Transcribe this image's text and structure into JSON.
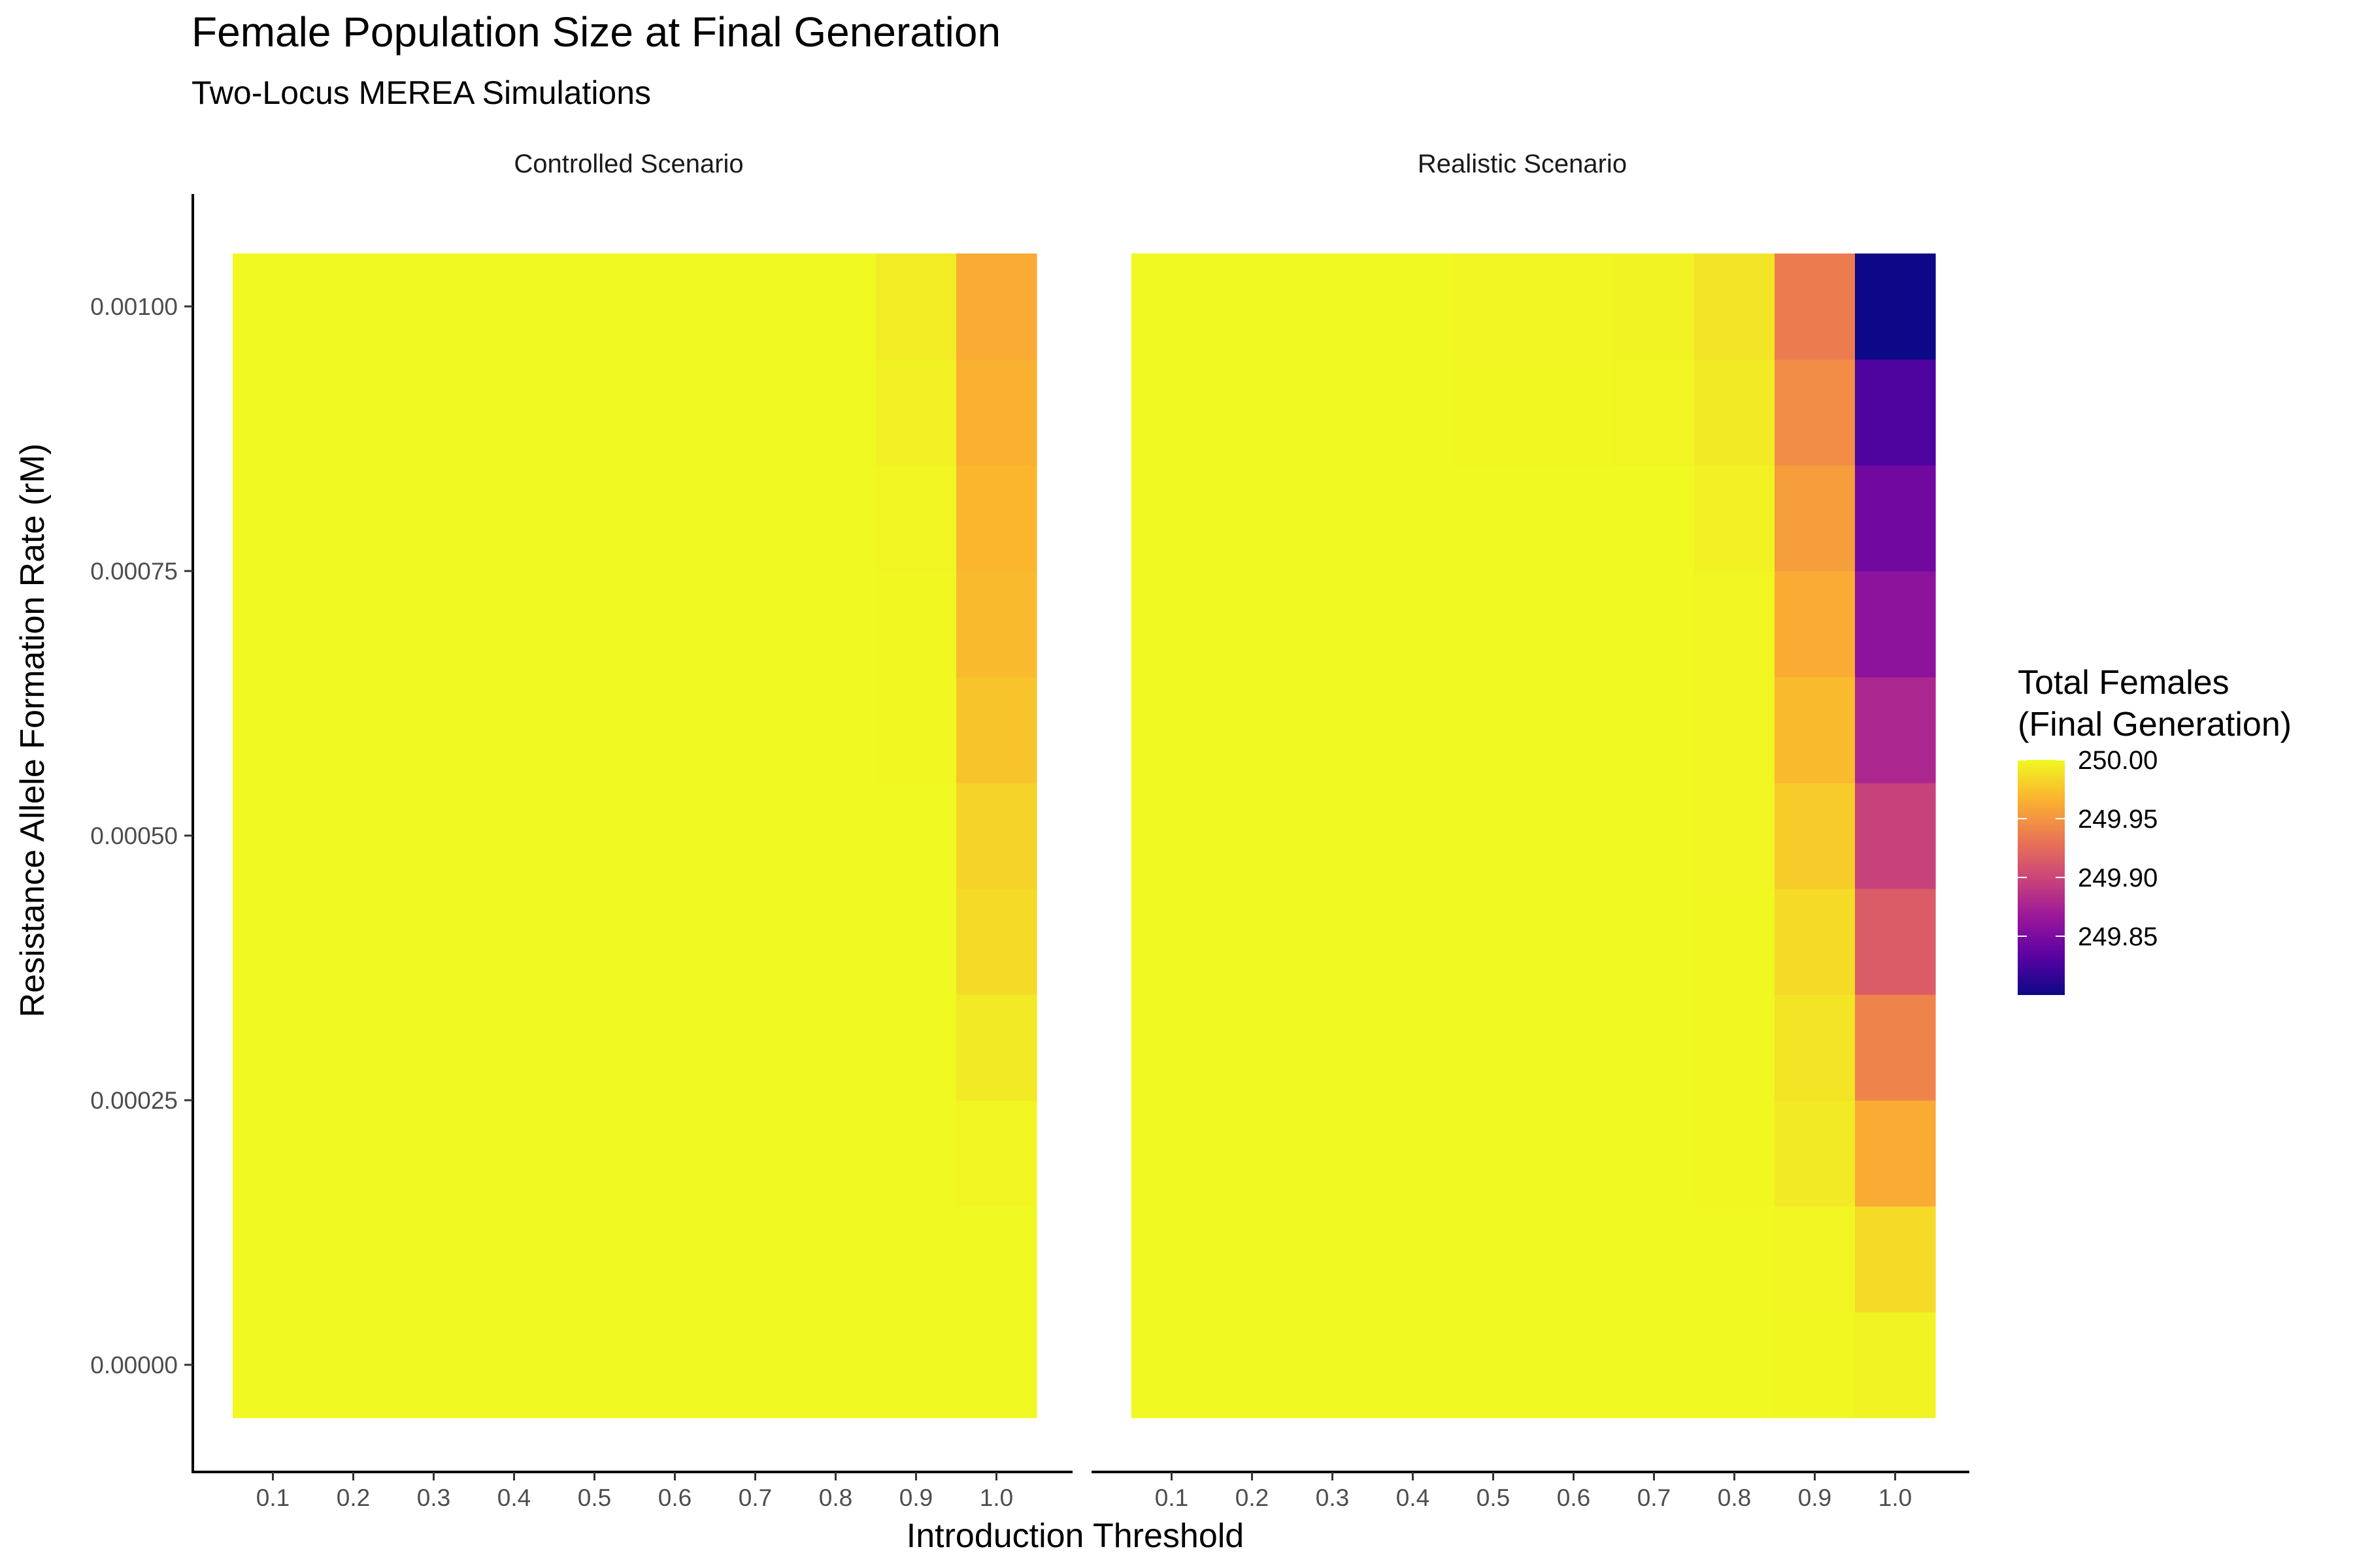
{
  "chart_data": {
    "type": "heatmap",
    "title": "Female Population Size at Final Generation",
    "subtitle": "Two-Locus MEREA Simulations",
    "xlabel": "Introduction Threshold",
    "ylabel": "Resistance Allele Formation Rate (rM)",
    "x": [
      0.1,
      0.2,
      0.3,
      0.4,
      0.5,
      0.6,
      0.7,
      0.8,
      0.9,
      1.0
    ],
    "x_tick_labels": [
      "0.1",
      "0.2",
      "0.3",
      "0.4",
      "0.5",
      "0.6",
      "0.7",
      "0.8",
      "0.9",
      "1.0"
    ],
    "y": [
      0.0,
      0.0001,
      0.0002,
      0.0003,
      0.0004,
      0.0005,
      0.0006,
      0.0007,
      0.0008,
      0.0009,
      0.001
    ],
    "y_ticks": [
      0.0,
      0.00025,
      0.0005,
      0.00075,
      0.001
    ],
    "y_tick_labels": [
      "0.00000",
      "0.00025",
      "0.00050",
      "0.00075",
      "0.00100"
    ],
    "legend": {
      "title_line1": "Total Females",
      "title_line2": "(Final Generation)",
      "placement": "right",
      "limits": [
        249.8,
        250.0
      ],
      "ticks": [
        250.0,
        249.95,
        249.9,
        249.85
      ],
      "tick_labels": [
        "250.00",
        "249.95",
        "249.90",
        "249.85"
      ]
    },
    "colorscale": [
      "#0d0887",
      "#5b02a3",
      "#9a179b",
      "#cb4678",
      "#eb7852",
      "#fbb32f",
      "#f0f921"
    ],
    "panels": [
      {
        "label": "Controlled Scenario",
        "z": [
          [
            250.0,
            250.0,
            250.0,
            250.0,
            250.0,
            250.0,
            250.0,
            250.0,
            250.0,
            250.0
          ],
          [
            250.0,
            250.0,
            250.0,
            250.0,
            250.0,
            250.0,
            250.0,
            250.0,
            250.0,
            250.0
          ],
          [
            250.0,
            250.0,
            250.0,
            250.0,
            250.0,
            250.0,
            250.0,
            250.0,
            250.0,
            249.998
          ],
          [
            250.0,
            250.0,
            250.0,
            250.0,
            250.0,
            250.0,
            250.0,
            250.0,
            250.0,
            249.993
          ],
          [
            250.0,
            250.0,
            250.0,
            250.0,
            250.0,
            250.0,
            250.0,
            250.0,
            250.0,
            249.985
          ],
          [
            250.0,
            250.0,
            250.0,
            250.0,
            250.0,
            250.0,
            250.0,
            250.0,
            250.0,
            249.982
          ],
          [
            250.0,
            250.0,
            250.0,
            250.0,
            250.0,
            250.0,
            250.0,
            250.0,
            249.999,
            249.975
          ],
          [
            250.0,
            250.0,
            250.0,
            250.0,
            250.0,
            250.0,
            250.0,
            250.0,
            249.999,
            249.97
          ],
          [
            250.0,
            250.0,
            250.0,
            250.0,
            250.0,
            250.0,
            250.0,
            250.0,
            249.998,
            249.968
          ],
          [
            250.0,
            250.0,
            250.0,
            250.0,
            250.0,
            250.0,
            250.0,
            250.0,
            249.996,
            249.965
          ],
          [
            250.0,
            250.0,
            250.0,
            250.0,
            250.0,
            250.0,
            250.0,
            250.0,
            249.994,
            249.962
          ]
        ]
      },
      {
        "label": "Realistic Scenario",
        "z": [
          [
            250.0,
            250.0,
            250.0,
            250.0,
            250.0,
            250.0,
            250.0,
            250.0,
            249.999,
            249.997
          ],
          [
            250.0,
            250.0,
            250.0,
            250.0,
            250.0,
            250.0,
            250.0,
            250.0,
            249.998,
            249.985
          ],
          [
            250.0,
            250.0,
            250.0,
            250.0,
            250.0,
            250.0,
            250.0,
            249.999,
            249.993,
            249.962
          ],
          [
            250.0,
            250.0,
            250.0,
            250.0,
            250.0,
            250.0,
            250.0,
            249.999,
            249.99,
            249.94
          ],
          [
            250.0,
            250.0,
            250.0,
            250.0,
            250.0,
            250.0,
            250.0,
            249.999,
            249.985,
            249.915
          ],
          [
            250.0,
            250.0,
            250.0,
            250.0,
            250.0,
            250.0,
            250.0,
            249.998,
            249.978,
            249.897
          ],
          [
            250.0,
            250.0,
            250.0,
            250.0,
            250.0,
            250.0,
            250.0,
            249.998,
            249.97,
            249.878
          ],
          [
            250.0,
            250.0,
            250.0,
            250.0,
            250.0,
            250.0,
            250.0,
            249.998,
            249.962,
            249.86
          ],
          [
            250.0,
            250.0,
            250.0,
            250.0,
            250.0,
            250.0,
            250.0,
            249.996,
            249.955,
            249.845
          ],
          [
            250.0,
            250.0,
            250.0,
            250.0,
            249.999,
            249.999,
            249.998,
            249.993,
            249.945,
            249.828
          ],
          [
            250.0,
            250.0,
            250.0,
            250.0,
            249.998,
            249.998,
            249.997,
            249.99,
            249.935,
            249.8
          ]
        ]
      }
    ]
  }
}
